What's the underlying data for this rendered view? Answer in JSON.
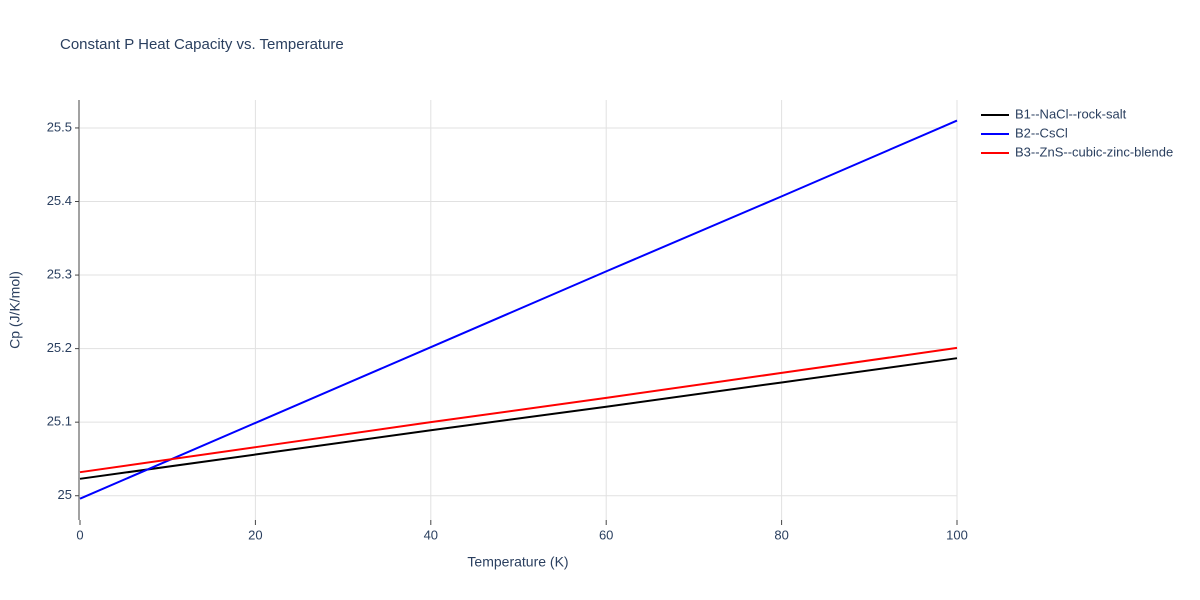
{
  "chart_data": {
    "type": "line",
    "title": "Constant P Heat Capacity vs. Temperature",
    "x_label": "Temperature (K)",
    "y_label": "Cp (J/K/mol)",
    "x": [
      0,
      20,
      40,
      60,
      80,
      100
    ],
    "series": [
      {
        "name": "B1--NaCl--rock-salt",
        "color": "#000000",
        "values": [
          25.023,
          25.056,
          25.089,
          25.121,
          25.154,
          25.187
        ]
      },
      {
        "name": "B2--CsCl",
        "color": "#0000ff",
        "values": [
          24.996,
          25.099,
          25.202,
          25.305,
          25.407,
          25.51
        ]
      },
      {
        "name": "B3--ZnS--cubic-zinc-blende",
        "color": "#ff0000",
        "values": [
          25.032,
          25.066,
          25.1,
          25.133,
          25.167,
          25.201
        ]
      }
    ],
    "xlim": [
      0,
      100
    ],
    "xticks": [
      0,
      20,
      40,
      60,
      80,
      100
    ],
    "ylim": [
      24.967,
      25.538
    ],
    "yticks": [
      25,
      25.1,
      25.2,
      25.3,
      25.4,
      25.5
    ],
    "grid": true,
    "legend": "outside-right"
  }
}
